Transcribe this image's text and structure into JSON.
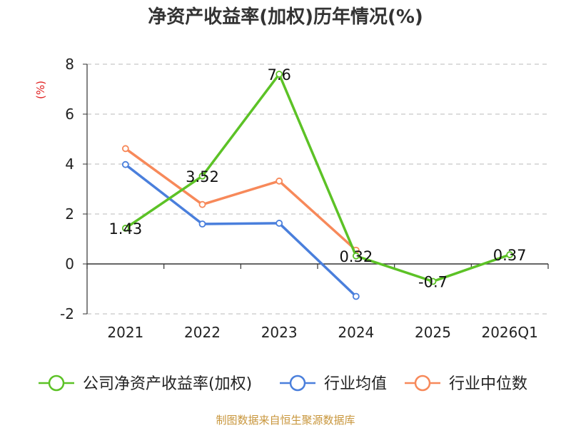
{
  "chart_data": {
    "type": "line",
    "title": "净资产收益率(加权)历年情况(%)",
    "ylabel": "(%)",
    "xlabel": "",
    "ylim": [
      -2,
      8
    ],
    "yticks": [
      -2,
      0,
      2,
      4,
      6,
      8
    ],
    "categories": [
      "2021",
      "2022",
      "2023",
      "2024",
      "2025",
      "2026Q1"
    ],
    "series": [
      {
        "name": "公司净资产收益率(加权)",
        "color": "#5cc226",
        "values": [
          1.43,
          3.52,
          7.6,
          0.32,
          -0.7,
          0.37
        ],
        "labels": [
          "1.43",
          "3.52",
          "7.6",
          "0.32",
          "-0.7",
          "0.37"
        ]
      },
      {
        "name": "行业均值",
        "color": "#4a7fdc",
        "values": [
          3.98,
          1.6,
          1.63,
          -1.3,
          null,
          null
        ]
      },
      {
        "name": "行业中位数",
        "color": "#f7895a",
        "values": [
          4.62,
          2.38,
          3.32,
          0.55,
          null,
          null
        ]
      }
    ],
    "grid": true,
    "legend": "bottom",
    "unit_color": "#e02020",
    "source": "制图数据来自恒生聚源数据库",
    "source_color": "#c8963c"
  }
}
